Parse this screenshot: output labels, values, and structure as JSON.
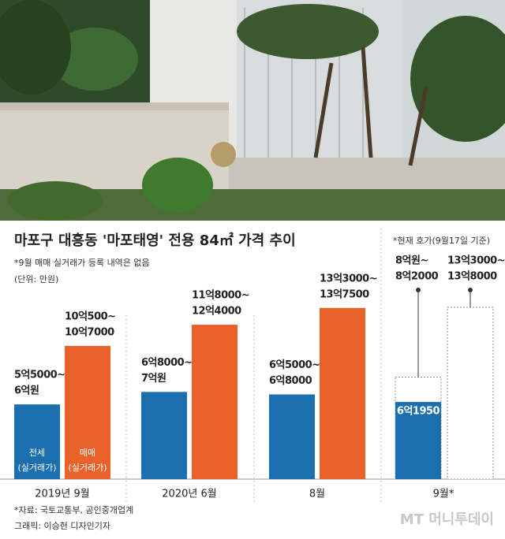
{
  "chart_data": {
    "type": "bar",
    "title": "마포구 대흥동 '마포태영' 전용 84㎡ 가격 추이",
    "subtitle": "*9월 매매 실거래가 등록 내역은 없음",
    "unit": "(단위: 만원)",
    "note": "*현재 호가(9월17일 기준)",
    "source": "*자료: 국토교통부, 공인중개업계",
    "credit": "그래픽: 이승현 디자인기자",
    "logo": "MT 머니투데이",
    "categories": [
      "2019년 9월",
      "2020년 6월",
      "8월",
      "9월*"
    ],
    "ylim": [
      0,
      150000
    ],
    "series": [
      {
        "name": [
          "전세",
          "(실거래가)"
        ],
        "color": "#1b6fae",
        "values": [
          60000,
          70000,
          68000,
          61950
        ],
        "value_labels": [
          [
            "5억5000~",
            "6억원"
          ],
          [
            "6억8000~",
            "7억원"
          ],
          [
            "6억5000~",
            "6억8000"
          ],
          "6억1950"
        ]
      },
      {
        "name": [
          "매매",
          "(실거래가)"
        ],
        "color": "#e8622a",
        "values": [
          107000,
          124000,
          137500,
          null
        ],
        "value_labels": [
          [
            "10억500~",
            "10억7000"
          ],
          [
            "11억8000~",
            "12억4000"
          ],
          [
            "13억3000~",
            "13억7500"
          ],
          null
        ]
      },
      {
        "color": "#ffffff",
        "outline": "dotted",
        "values": [
          null,
          null,
          null,
          82000
        ],
        "value_labels": [
          null,
          null,
          null,
          [
            "8억원~",
            "8억2000"
          ]
        ]
      },
      {
        "color": "#ffffff",
        "outline": "dotted",
        "values": [
          null,
          null,
          null,
          138000
        ],
        "value_labels": [
          null,
          null,
          null,
          [
            "13억3000~",
            "13억8000"
          ]
        ]
      }
    ]
  }
}
